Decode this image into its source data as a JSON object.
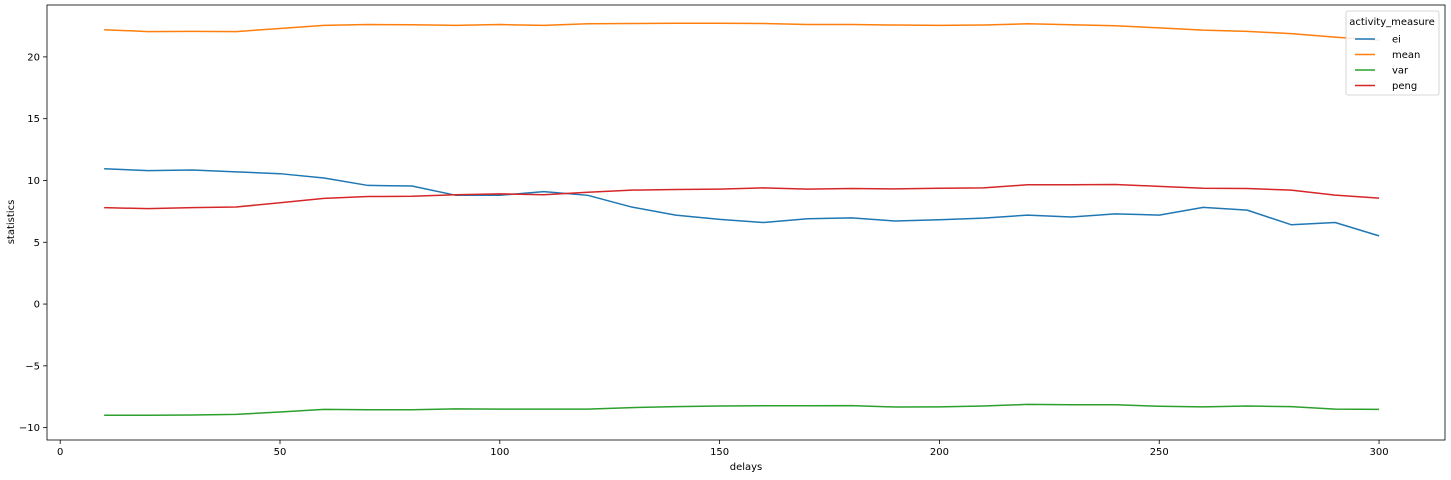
{
  "chart_data": {
    "type": "line",
    "title": "",
    "xlabel": "delays",
    "ylabel": "statistics",
    "xlim": [
      -3,
      315
    ],
    "ylim": [
      -11.0,
      24.2
    ],
    "xticks": [
      0,
      50,
      100,
      150,
      200,
      250,
      300
    ],
    "yticks": [
      -10,
      -5,
      0,
      5,
      10,
      15,
      20
    ],
    "ytick_labels": [
      "−10",
      "−5",
      "0",
      "5",
      "10",
      "15",
      "20"
    ],
    "grid": false,
    "legend": {
      "title": "activity_measure",
      "placement": "top-right"
    },
    "x": [
      10,
      20,
      30,
      40,
      50,
      60,
      70,
      80,
      90,
      100,
      110,
      120,
      130,
      140,
      150,
      160,
      170,
      180,
      190,
      200,
      210,
      220,
      230,
      240,
      250,
      260,
      270,
      280,
      290,
      300
    ],
    "series": [
      {
        "name": "ei",
        "color": "#1f77b4",
        "values": [
          10.95,
          10.8,
          10.85,
          10.7,
          10.55,
          10.2,
          9.6,
          9.55,
          8.8,
          8.8,
          9.1,
          8.8,
          7.85,
          7.2,
          6.85,
          6.6,
          6.9,
          6.97,
          6.72,
          6.82,
          6.95,
          7.2,
          7.05,
          7.3,
          7.2,
          7.82,
          7.6,
          6.42,
          6.6,
          5.52
        ]
      },
      {
        "name": "mean",
        "color": "#ff7f0e",
        "values": [
          22.2,
          22.05,
          22.07,
          22.05,
          22.3,
          22.55,
          22.62,
          22.6,
          22.55,
          22.62,
          22.55,
          22.68,
          22.7,
          22.72,
          22.72,
          22.7,
          22.62,
          22.62,
          22.58,
          22.55,
          22.58,
          22.68,
          22.6,
          22.52,
          22.35,
          22.17,
          22.07,
          21.88,
          21.6,
          21.35
        ]
      },
      {
        "name": "var",
        "color": "#2ca02c",
        "values": [
          -9.0,
          -9.0,
          -8.98,
          -8.93,
          -8.73,
          -8.52,
          -8.55,
          -8.55,
          -8.48,
          -8.5,
          -8.5,
          -8.5,
          -8.38,
          -8.3,
          -8.25,
          -8.23,
          -8.23,
          -8.22,
          -8.33,
          -8.32,
          -8.25,
          -8.12,
          -8.15,
          -8.15,
          -8.27,
          -8.32,
          -8.25,
          -8.3,
          -8.5,
          -8.52
        ]
      },
      {
        "name": "peng",
        "color": "#d62728",
        "values": [
          7.8,
          7.72,
          7.8,
          7.85,
          8.2,
          8.55,
          8.7,
          8.72,
          8.85,
          8.92,
          8.85,
          9.05,
          9.22,
          9.27,
          9.3,
          9.4,
          9.3,
          9.35,
          9.32,
          9.37,
          9.4,
          9.65,
          9.65,
          9.68,
          9.52,
          9.37,
          9.35,
          9.22,
          8.82,
          8.57
        ]
      }
    ]
  }
}
